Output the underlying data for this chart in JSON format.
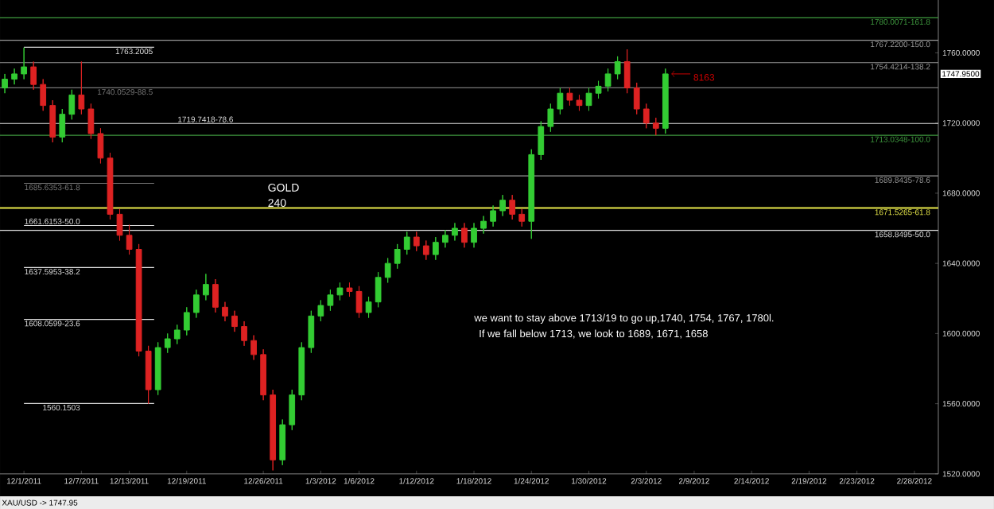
{
  "chart_data": {
    "type": "candlestick",
    "categories": [
      null,
      null,
      "12/1/2011",
      null,
      null,
      null,
      null,
      null,
      "12/7/2011",
      null,
      null,
      null,
      null,
      "12/13/2011",
      null,
      null,
      null,
      null,
      null,
      "12/19/2011",
      null,
      null,
      null,
      null,
      null,
      null,
      null,
      "12/26/2011",
      null,
      null,
      null,
      null,
      null,
      "1/3/2012",
      null,
      null,
      null,
      "1/6/2012",
      null,
      null,
      null,
      null,
      null,
      "1/12/2012",
      null,
      null,
      null,
      null,
      null,
      "1/18/2012",
      null,
      null,
      null,
      null,
      null,
      "1/24/2012",
      null,
      null,
      null,
      null,
      null,
      "1/30/2012",
      null,
      null,
      null,
      null,
      null,
      "2/3/2012",
      null,
      null,
      null,
      null,
      "2/9/2012",
      null,
      null,
      null,
      null,
      null,
      "2/14/2012",
      null,
      null,
      null,
      null,
      null,
      "2/19/2012",
      null,
      null,
      null,
      null,
      "2/23/2012",
      null,
      null,
      null,
      null,
      null,
      "2/28/2012",
      null,
      null
    ],
    "ohlc": [
      [
        1740,
        1748,
        1737,
        1745
      ],
      [
        1745,
        1751,
        1742,
        1748
      ],
      [
        1748,
        1763,
        1745,
        1752
      ],
      [
        1752,
        1755,
        1739,
        1742
      ],
      [
        1742,
        1745,
        1727,
        1730
      ],
      [
        1730,
        1733,
        1709,
        1712
      ],
      [
        1712,
        1728,
        1709,
        1725
      ],
      [
        1725,
        1739,
        1722,
        1736
      ],
      [
        1736,
        1755,
        1725,
        1728
      ],
      [
        1728,
        1731,
        1711,
        1714
      ],
      [
        1714,
        1717,
        1697,
        1700
      ],
      [
        1700,
        1703,
        1665,
        1668
      ],
      [
        1668,
        1671,
        1653,
        1656
      ],
      [
        1656,
        1662,
        1645,
        1648
      ],
      [
        1648,
        1651,
        1587,
        1590
      ],
      [
        1590,
        1593,
        1560,
        1568
      ],
      [
        1568,
        1595,
        1565,
        1592
      ],
      [
        1592,
        1600,
        1589,
        1597
      ],
      [
        1597,
        1605,
        1594,
        1602
      ],
      [
        1602,
        1615,
        1599,
        1612
      ],
      [
        1612,
        1625,
        1609,
        1622
      ],
      [
        1622,
        1634,
        1619,
        1628
      ],
      [
        1628,
        1631,
        1612,
        1615
      ],
      [
        1615,
        1618,
        1607,
        1610
      ],
      [
        1610,
        1613,
        1601,
        1604
      ],
      [
        1604,
        1607,
        1593,
        1596
      ],
      [
        1596,
        1599,
        1585,
        1588
      ],
      [
        1588,
        1591,
        1562,
        1565
      ],
      [
        1565,
        1568,
        1522,
        1528
      ],
      [
        1528,
        1551,
        1525,
        1548
      ],
      [
        1548,
        1568,
        1545,
        1565
      ],
      [
        1565,
        1595,
        1562,
        1592
      ],
      [
        1592,
        1613,
        1589,
        1610
      ],
      [
        1610,
        1619,
        1607,
        1616
      ],
      [
        1616,
        1625,
        1613,
        1622
      ],
      [
        1622,
        1629,
        1619,
        1626
      ],
      [
        1626,
        1629,
        1621,
        1624
      ],
      [
        1624,
        1627,
        1609,
        1612
      ],
      [
        1612,
        1621,
        1609,
        1618
      ],
      [
        1618,
        1635,
        1615,
        1632
      ],
      [
        1632,
        1643,
        1629,
        1640
      ],
      [
        1640,
        1651,
        1637,
        1648
      ],
      [
        1648,
        1658,
        1645,
        1655
      ],
      [
        1655,
        1658,
        1647,
        1650
      ],
      [
        1650,
        1653,
        1642,
        1645
      ],
      [
        1645,
        1655,
        1642,
        1652
      ],
      [
        1652,
        1659,
        1649,
        1656
      ],
      [
        1656,
        1663,
        1653,
        1660
      ],
      [
        1660,
        1663,
        1649,
        1652
      ],
      [
        1652,
        1663,
        1649,
        1660
      ],
      [
        1660,
        1667,
        1657,
        1664
      ],
      [
        1664,
        1673,
        1661,
        1670
      ],
      [
        1670,
        1679,
        1667,
        1676
      ],
      [
        1676,
        1679,
        1665,
        1668
      ],
      [
        1668,
        1671,
        1661,
        1664
      ],
      [
        1664,
        1705,
        1654,
        1702
      ],
      [
        1702,
        1721,
        1699,
        1718
      ],
      [
        1718,
        1731,
        1715,
        1728
      ],
      [
        1728,
        1740,
        1725,
        1737
      ],
      [
        1737,
        1740,
        1730,
        1733
      ],
      [
        1733,
        1736,
        1727,
        1730
      ],
      [
        1730,
        1740,
        1727,
        1737
      ],
      [
        1737,
        1744,
        1734,
        1741
      ],
      [
        1741,
        1751,
        1738,
        1748
      ],
      [
        1748,
        1758,
        1745,
        1755
      ],
      [
        1755,
        1762,
        1737,
        1740
      ],
      [
        1740,
        1743,
        1725,
        1728
      ],
      [
        1728,
        1731,
        1717,
        1720
      ],
      [
        1720,
        1723,
        1713,
        1717
      ],
      [
        1717,
        1751,
        1714,
        1748
      ],
      null,
      null,
      null,
      null,
      null,
      null,
      null,
      null,
      null,
      null,
      null,
      null,
      null,
      null,
      null,
      null,
      null,
      null,
      null,
      null,
      null,
      null,
      null,
      null,
      null,
      null,
      null,
      null
    ],
    "ylim": [
      1520,
      1792
    ],
    "yticks": [
      {
        "value": 1520,
        "label": "1520.0000"
      },
      {
        "value": 1560,
        "label": "1560.0000"
      },
      {
        "value": 1600,
        "label": "1600.0000"
      },
      {
        "value": 1640,
        "label": "1640.0000"
      },
      {
        "value": 1680,
        "label": "1680.0000"
      },
      {
        "value": 1720,
        "label": "1720.0000"
      },
      {
        "value": 1760,
        "label": "1760.0000"
      }
    ],
    "ref_lines": [
      {
        "axis": "y",
        "value": 1763.2005,
        "label": "1763.2005",
        "color": "#e0e0e0"
      },
      {
        "axis": "y",
        "value": 1740.0529,
        "label": "1740.0529-88.5",
        "color": "#777777"
      },
      {
        "axis": "y",
        "value": 1719.7418,
        "label": "1719.7418-78.6",
        "color": "#e0e0e0"
      },
      {
        "axis": "y",
        "value": 1685.6353,
        "label": "1685.6353-61.8",
        "color": "#777777"
      },
      {
        "axis": "y",
        "value": 1661.6153,
        "label": "1661.6153-50.0",
        "color": "#e0e0e0"
      },
      {
        "axis": "y",
        "value": 1637.5953,
        "label": "1637.5953-38.2",
        "color": "#e0e0e0"
      },
      {
        "axis": "y",
        "value": 1608.0599,
        "label": "1608.0599-23.6",
        "color": "#e0e0e0"
      },
      {
        "axis": "y",
        "value": 1560.1503,
        "label": "1560.1503",
        "color": "#e0e0e0"
      },
      {
        "axis": "y",
        "value": 1780.0071,
        "label": "1780.0071-161.8",
        "color": "#3f9a3f"
      },
      {
        "axis": "y",
        "value": 1767.22,
        "label": "1767.2200-150.0",
        "color": "#999999"
      },
      {
        "axis": "y",
        "value": 1754.4214,
        "label": "1754.4214-138.2",
        "color": "#999999"
      },
      {
        "axis": "y",
        "value": 1713.0348,
        "label": "1713.0348-100.0",
        "color": "#3f9a3f"
      },
      {
        "axis": "y",
        "value": 1689.8435,
        "label": "1689.8435-78.6",
        "color": "#999999"
      },
      {
        "axis": "y",
        "value": 1671.5265,
        "label": "1671.5265-61.8",
        "color": "#e8e84a"
      },
      {
        "axis": "y",
        "value": 1658.8495,
        "label": "1658.8495-50.0",
        "color": "#e0e0e0"
      }
    ],
    "annotations": [
      "GOLD",
      "240",
      "we want to stay above 1713/19 to go up,1740, 1754, 1767, 1780l.",
      "If we fall below 1713, we look to 1689, 1671, 1658",
      "8163",
      "XAU/USD -> 1747.95",
      "1747.9500"
    ]
  }
}
